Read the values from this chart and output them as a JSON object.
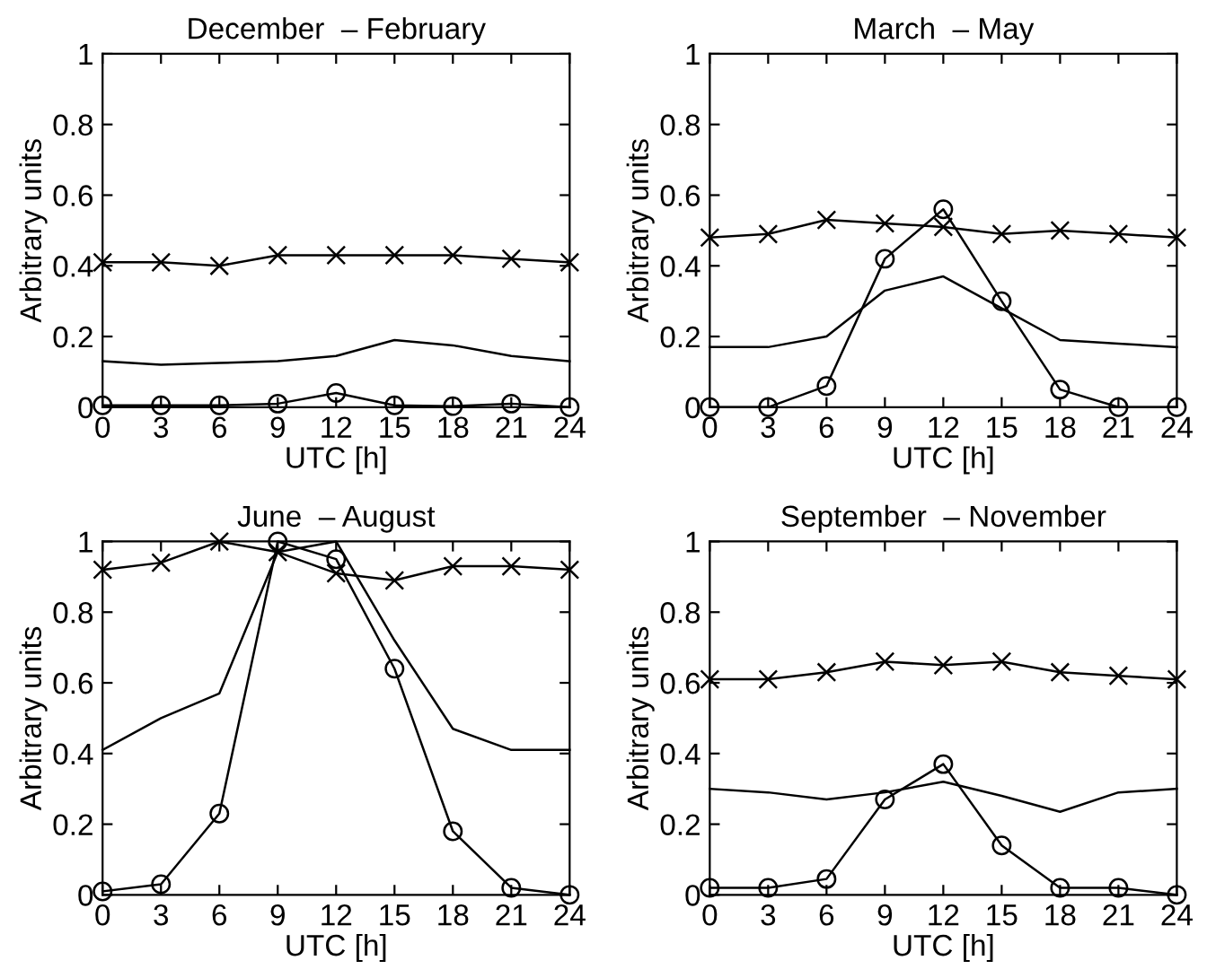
{
  "chart_data": [
    {
      "type": "line",
      "title": "December  – February",
      "xlabel": "UTC [h]",
      "ylabel": "Arbitrary units",
      "x": [
        0,
        3,
        6,
        9,
        12,
        15,
        18,
        21,
        24
      ],
      "xlim": [
        0,
        24
      ],
      "ylim": [
        0,
        1
      ],
      "xticks": [
        0,
        3,
        6,
        9,
        12,
        15,
        18,
        21,
        24
      ],
      "yticks": [
        0,
        0.2,
        0.4,
        0.6,
        0.8,
        1
      ],
      "grid": false,
      "series": [
        {
          "color": "#000000",
          "marker": "cross",
          "values": [
            0.41,
            0.41,
            0.4,
            0.43,
            0.43,
            0.43,
            0.43,
            0.42,
            0.41
          ]
        },
        {
          "color": "#000000",
          "marker": "none",
          "values": [
            0.13,
            0.12,
            0.125,
            0.13,
            0.145,
            0.19,
            0.175,
            0.145,
            0.13
          ]
        },
        {
          "color": "#000000",
          "marker": "circle",
          "values": [
            0.005,
            0.005,
            0.005,
            0.01,
            0.04,
            0.005,
            0.003,
            0.01,
            0.0
          ]
        }
      ]
    },
    {
      "type": "line",
      "title": "March  – May",
      "xlabel": "UTC [h]",
      "ylabel": "Arbitrary units",
      "x": [
        0,
        3,
        6,
        9,
        12,
        15,
        18,
        21,
        24
      ],
      "xlim": [
        0,
        24
      ],
      "ylim": [
        0,
        1
      ],
      "xticks": [
        0,
        3,
        6,
        9,
        12,
        15,
        18,
        21,
        24
      ],
      "yticks": [
        0,
        0.2,
        0.4,
        0.6,
        0.8,
        1
      ],
      "grid": false,
      "series": [
        {
          "color": "#000000",
          "marker": "cross",
          "values": [
            0.48,
            0.49,
            0.53,
            0.52,
            0.51,
            0.49,
            0.5,
            0.49,
            0.48
          ]
        },
        {
          "color": "#000000",
          "marker": "none",
          "values": [
            0.17,
            0.17,
            0.2,
            0.33,
            0.37,
            0.28,
            0.19,
            0.18,
            0.17
          ]
        },
        {
          "color": "#000000",
          "marker": "circle",
          "values": [
            0.0,
            0.0,
            0.06,
            0.42,
            0.56,
            0.3,
            0.05,
            0.0,
            0.0
          ]
        }
      ]
    },
    {
      "type": "line",
      "title": "June  – August",
      "xlabel": "UTC [h]",
      "ylabel": "Arbitrary units",
      "x": [
        0,
        3,
        6,
        9,
        12,
        15,
        18,
        21,
        24
      ],
      "xlim": [
        0,
        24
      ],
      "ylim": [
        0,
        1
      ],
      "xticks": [
        0,
        3,
        6,
        9,
        12,
        15,
        18,
        21,
        24
      ],
      "yticks": [
        0,
        0.2,
        0.4,
        0.6,
        0.8,
        1
      ],
      "grid": false,
      "series": [
        {
          "color": "#000000",
          "marker": "cross",
          "values": [
            0.92,
            0.94,
            1.0,
            0.97,
            0.91,
            0.89,
            0.93,
            0.93,
            0.92
          ]
        },
        {
          "color": "#000000",
          "marker": "none",
          "values": [
            0.41,
            0.5,
            0.57,
            0.97,
            1.0,
            0.72,
            0.47,
            0.41,
            0.41
          ]
        },
        {
          "color": "#000000",
          "marker": "circle",
          "values": [
            0.01,
            0.03,
            0.23,
            1.0,
            0.95,
            0.64,
            0.18,
            0.02,
            0.0
          ]
        }
      ]
    },
    {
      "type": "line",
      "title": "September  – November",
      "xlabel": "UTC [h]",
      "ylabel": "Arbitrary units",
      "x": [
        0,
        3,
        6,
        9,
        12,
        15,
        18,
        21,
        24
      ],
      "xlim": [
        0,
        24
      ],
      "ylim": [
        0,
        1
      ],
      "xticks": [
        0,
        3,
        6,
        9,
        12,
        15,
        18,
        21,
        24
      ],
      "yticks": [
        0,
        0.2,
        0.4,
        0.6,
        0.8,
        1
      ],
      "grid": false,
      "series": [
        {
          "color": "#000000",
          "marker": "cross",
          "values": [
            0.61,
            0.61,
            0.63,
            0.66,
            0.65,
            0.66,
            0.63,
            0.62,
            0.61
          ]
        },
        {
          "color": "#000000",
          "marker": "none",
          "values": [
            0.3,
            0.29,
            0.27,
            0.29,
            0.32,
            0.28,
            0.235,
            0.29,
            0.3
          ]
        },
        {
          "color": "#000000",
          "marker": "circle",
          "values": [
            0.02,
            0.02,
            0.045,
            0.27,
            0.37,
            0.14,
            0.02,
            0.02,
            0.0
          ]
        }
      ]
    }
  ]
}
